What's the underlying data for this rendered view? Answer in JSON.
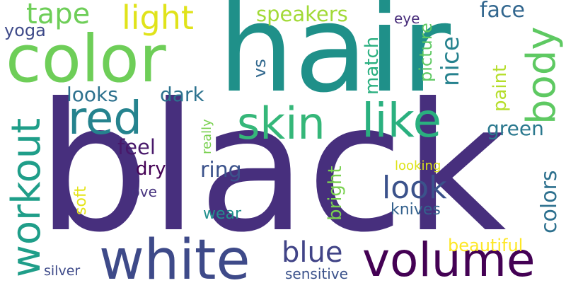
{
  "words": {
    "black": "black",
    "hair": "hair",
    "color": "color",
    "white": "white",
    "volume": "volume",
    "red": "red",
    "skin": "skin",
    "like": "like",
    "light": "light",
    "tape": "tape",
    "speakers": "speakers",
    "face": "face",
    "workout": "workout",
    "body": "body",
    "look": "look",
    "blue": "blue",
    "looks": "looks",
    "dark": "dark",
    "feel": "feel",
    "dry": "dry",
    "ring": "ring",
    "green": "green",
    "colors": "colors",
    "nice": "nice",
    "yoga": "yoga",
    "vs": "vs",
    "match": "match",
    "eye": "eye",
    "picture": "picture",
    "paint": "paint",
    "really": "really",
    "bright": "bright",
    "looking": "looking",
    "soft": "soft",
    "love": "love",
    "wear": "wear",
    "knives": "knives",
    "beautiful": "beautiful",
    "silver": "silver",
    "sensitive": "sensitive"
  },
  "colors": {
    "black": "#472f7d",
    "hair": "#1f9089",
    "color": "#6ece58",
    "white": "#3e4a89",
    "volume": "#440154",
    "red": "#25838e",
    "skin": "#35b779",
    "like": "#2ab07f",
    "light": "#e0e31a",
    "tape": "#6ece58",
    "speakers": "#a2da37",
    "face": "#31668e",
    "workout": "#1f9e89",
    "body": "#5ec962",
    "look": "#3b528b",
    "blue": "#414487",
    "looks": "#2d718e",
    "dark": "#2c728e",
    "feel": "#48186a",
    "dry": "#440154",
    "ring": "#3b528b",
    "green": "#2a788e",
    "colors": "#2d708e",
    "nice": "#26828e",
    "yoga": "#3e4a89",
    "vs": "#31688e",
    "match": "#29af7f",
    "eye": "#472c7a",
    "picture": "#5ec962",
    "paint": "#b5de2b",
    "really": "#7ad151",
    "bright": "#7ad151",
    "looking": "#dde318",
    "soft": "#e5e419",
    "love": "#46327e",
    "wear": "#21908d",
    "knives": "#34618d",
    "beautiful": "#fde725",
    "silver": "#3e4a89",
    "sensitive": "#3b528b"
  }
}
